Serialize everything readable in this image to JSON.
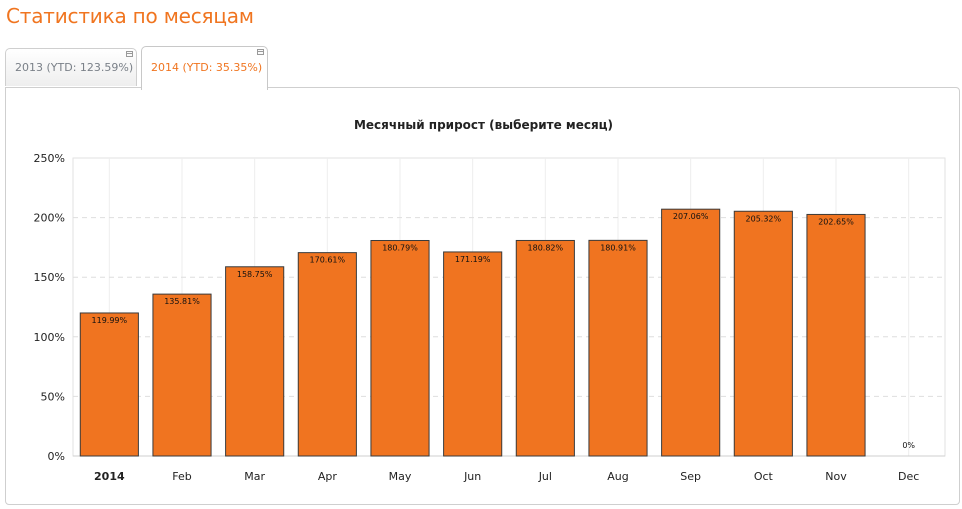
{
  "page": {
    "title": "Статистика по месяцам"
  },
  "tabs": [
    {
      "label": "2013 (YTD: 123.59%)",
      "active": false
    },
    {
      "label": "2014 (YTD: 35.35%)",
      "active": true
    }
  ],
  "colors": {
    "accent": "#f07520",
    "bar_fill": "#f07420",
    "bar_stroke": "#3a3a3a",
    "tab_inactive_text": "#7a8088"
  },
  "chart_data": {
    "type": "bar",
    "title": "Месячный прирост (выберите месяц)",
    "xlabel": "",
    "ylabel": "",
    "categories": [
      "2014",
      "Feb",
      "Mar",
      "Apr",
      "May",
      "Jun",
      "Jul",
      "Aug",
      "Sep",
      "Oct",
      "Nov",
      "Dec"
    ],
    "bold_category": "2014",
    "values": [
      119.99,
      135.81,
      158.75,
      170.61,
      180.79,
      171.19,
      180.82,
      180.91,
      207.06,
      205.32,
      202.65,
      0
    ],
    "value_labels": [
      "119.99%",
      "135.81%",
      "158.75%",
      "170.61%",
      "180.79%",
      "171.19%",
      "180.82%",
      "180.91%",
      "207.06%",
      "205.32%",
      "202.65%",
      "0%"
    ],
    "ylim": [
      0,
      250
    ],
    "yticks": [
      0,
      50,
      100,
      150,
      200,
      250
    ],
    "ytick_labels": [
      "0%",
      "50%",
      "100%",
      "150%",
      "200%",
      "250%"
    ],
    "grid": true,
    "legend": "none"
  }
}
